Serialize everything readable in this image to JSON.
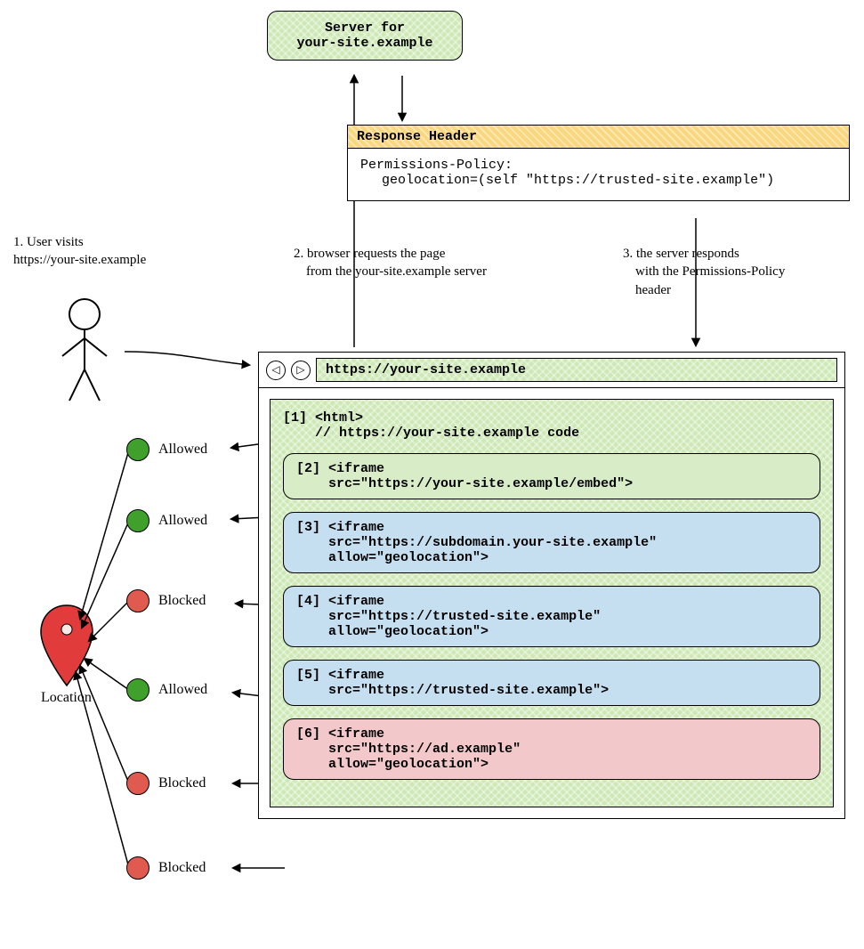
{
  "colors": {
    "allowed_dot": "#3fa02c",
    "blocked_dot": "#e05a4f",
    "server_bg": "#cde8b5",
    "header_bg": "#f9d77e",
    "iframe_same_origin_bg": "#d7ecc7",
    "iframe_blue_bg": "#c5dff0",
    "iframe_ad_bg": "#f2c8cb",
    "location_pin": "#e23b3b",
    "stroke": "#000000"
  },
  "server": {
    "line1": "Server for",
    "line2": "your-site.example"
  },
  "response_header": {
    "title": "Response Header",
    "policy_name": "Permissions-Policy:",
    "policy_value": "geolocation=(self \"https://trusted-site.example\")"
  },
  "steps": {
    "s1_line1": "1. User visits",
    "s1_line2": "https://your-site.example",
    "s2_line1": "2. browser requests the page",
    "s2_line2": "from the your-site.example server",
    "s3_line1": "3. the server responds",
    "s3_line2": "with the Permissions-Policy",
    "s3_line3": "header"
  },
  "browser": {
    "url": "https://your-site.example",
    "code1_tag": "[1]",
    "code1_line1": "<html>",
    "code1_line2": "// https://your-site.example code"
  },
  "iframes": [
    {
      "tag": "[2]",
      "l1": "<iframe",
      "l2": "src=\"https://your-site.example/embed\">",
      "l3": "",
      "bg": "lightgreen"
    },
    {
      "tag": "[3]",
      "l1": "<iframe",
      "l2": "src=\"https://subdomain.your-site.example\"",
      "l3": "allow=\"geolocation\">",
      "bg": "blue"
    },
    {
      "tag": "[4]",
      "l1": "<iframe",
      "l2": "src=\"https://trusted-site.example\"",
      "l3": "allow=\"geolocation\">",
      "bg": "blue"
    },
    {
      "tag": "[5]",
      "l1": "<iframe",
      "l2": "src=\"https://trusted-site.example\">",
      "l3": "",
      "bg": "blue"
    },
    {
      "tag": "[6]",
      "l1": "<iframe",
      "l2": "src=\"https://ad.example\"",
      "l3": "allow=\"geolocation\">",
      "bg": "pink"
    }
  ],
  "statuses": [
    {
      "label": "Allowed",
      "color": "green"
    },
    {
      "label": "Allowed",
      "color": "green"
    },
    {
      "label": "Blocked",
      "color": "red"
    },
    {
      "label": "Allowed",
      "color": "green"
    },
    {
      "label": "Blocked",
      "color": "red"
    },
    {
      "label": "Blocked",
      "color": "red"
    }
  ],
  "location_label": "Location"
}
